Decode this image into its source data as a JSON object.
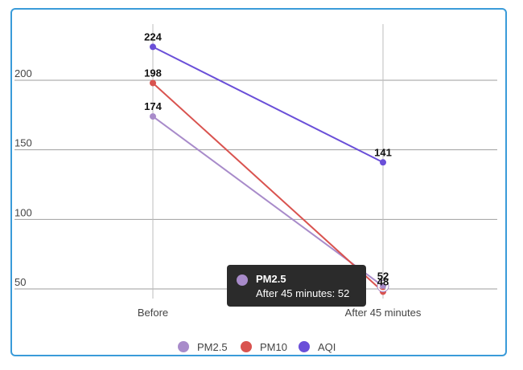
{
  "chart_data": {
    "type": "line",
    "title": "",
    "xlabel": "",
    "ylabel": "",
    "categories": [
      "Before",
      "After 45 minutes"
    ],
    "ylim": [
      30,
      245
    ],
    "yticks": [
      "50",
      "100",
      "150",
      "200"
    ],
    "grid": true,
    "legend_position": "bottom",
    "series": [
      {
        "name": "PM2.5",
        "values": [
          174,
          52
        ],
        "color": "#a88bca"
      },
      {
        "name": "PM10",
        "values": [
          198,
          48
        ],
        "color": "#d9534f"
      },
      {
        "name": "AQI",
        "values": [
          224,
          141
        ],
        "color": "#6a4fd8"
      }
    ],
    "data_labels": {
      "PM2.5": [
        "174",
        "52"
      ],
      "PM10": [
        "198",
        "48"
      ],
      "AQI": [
        "224",
        "141"
      ]
    }
  },
  "tooltip": {
    "series": "PM2.5",
    "text": "After 45 minutes: 52"
  }
}
